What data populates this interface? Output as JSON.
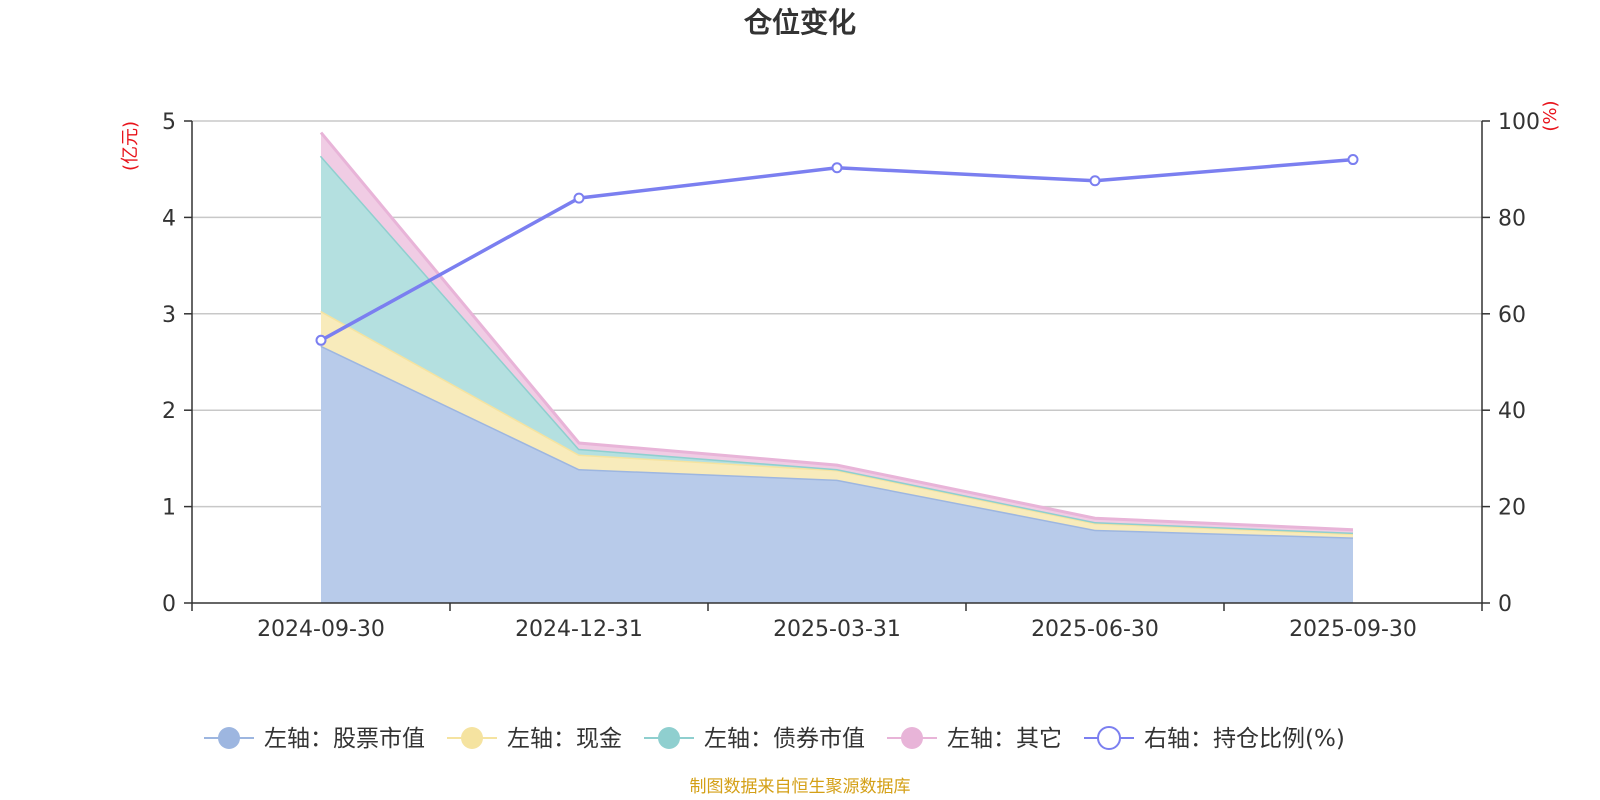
{
  "chart_data": {
    "type": "area",
    "title": "仓位变化",
    "categories": [
      "2024-09-30",
      "2024-12-31",
      "2025-03-31",
      "2025-06-30",
      "2025-09-30"
    ],
    "left_axis": {
      "unit": "(亿元)",
      "ylim": [
        0,
        5
      ],
      "ticks": [
        0,
        1,
        2,
        3,
        4,
        5
      ]
    },
    "right_axis": {
      "unit": "(%)",
      "ylim": [
        0,
        100
      ],
      "ticks": [
        0,
        20,
        40,
        60,
        80,
        100
      ]
    },
    "stacked": true,
    "grid": true,
    "legend_position": "bottom",
    "series": [
      {
        "name": "左轴：股票市值",
        "axis": "left",
        "kind": "area",
        "color": "#9db6e0",
        "fill": "#b8cbea",
        "values": [
          2.67,
          1.39,
          1.28,
          0.76,
          0.68
        ]
      },
      {
        "name": "左轴：现金",
        "axis": "left",
        "kind": "area",
        "color": "#f5e3a0",
        "fill": "#f8ebbb",
        "values": [
          0.36,
          0.15,
          0.1,
          0.07,
          0.04
        ]
      },
      {
        "name": "左轴：债券市值",
        "axis": "left",
        "kind": "area",
        "color": "#8fcfcf",
        "fill": "#b4e0e0",
        "values": [
          1.61,
          0.06,
          0.01,
          0.01,
          0.01
        ]
      },
      {
        "name": "左轴：其它",
        "axis": "left",
        "kind": "area",
        "color": "#e8b4d8",
        "fill": "#f0cce4",
        "values": [
          0.24,
          0.06,
          0.04,
          0.04,
          0.03
        ]
      },
      {
        "name": "右轴：持仓比例(%)",
        "axis": "right",
        "kind": "line",
        "color": "#7b7ff0",
        "values": [
          54.5,
          84.0,
          90.3,
          87.6,
          92.0
        ]
      }
    ]
  },
  "source_note": "制图数据来自恒生聚源数据库"
}
